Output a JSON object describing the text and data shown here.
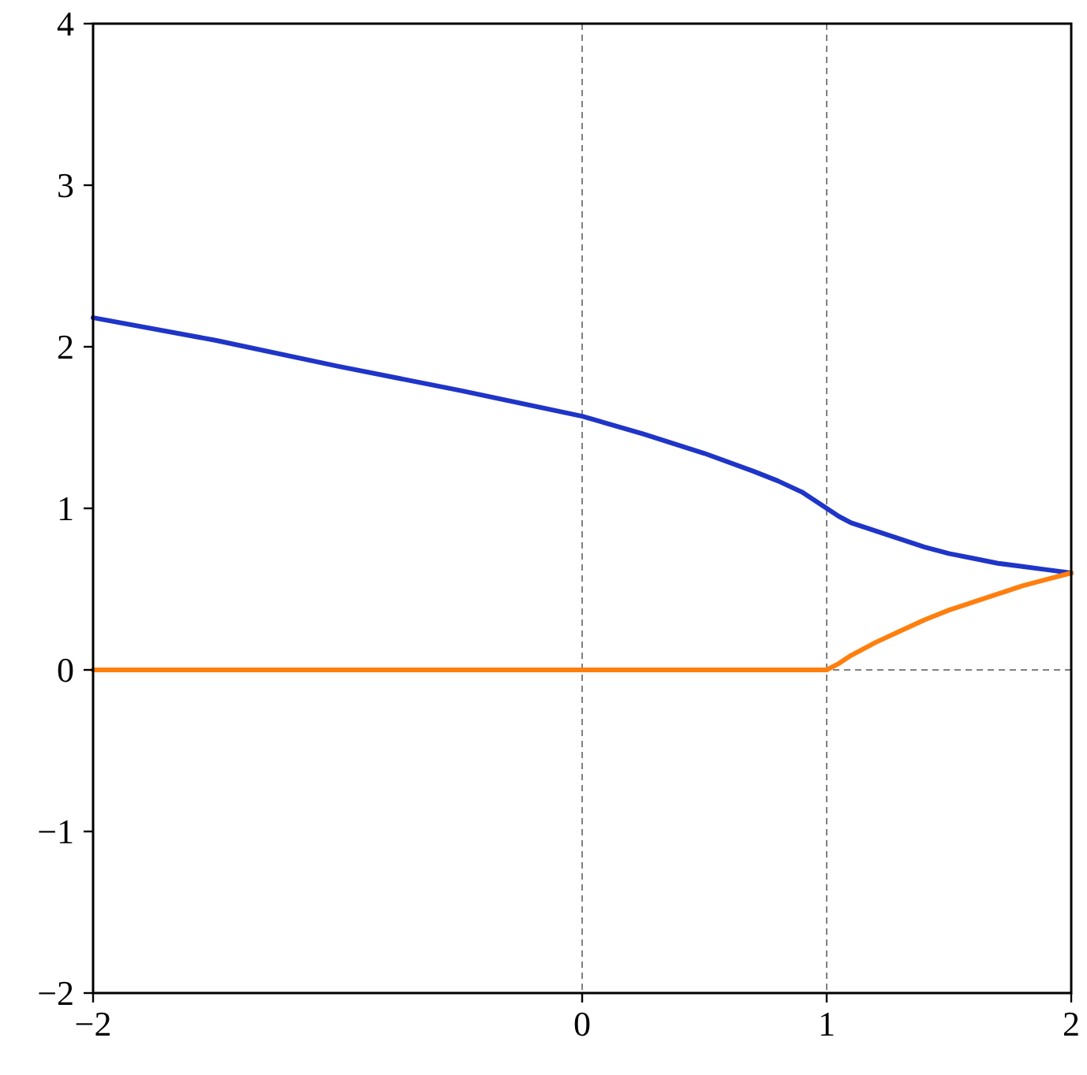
{
  "chart_data": {
    "type": "line",
    "xlim": [
      -2,
      2
    ],
    "ylim": [
      -2,
      4
    ],
    "xticks": [
      {
        "value": -2,
        "label": "−2"
      },
      0,
      1,
      2
    ],
    "yticks": [
      {
        "value": -2,
        "label": "−2"
      },
      {
        "value": -1,
        "label": "−1"
      },
      0,
      1,
      2,
      3,
      4
    ],
    "series": [
      {
        "color": "#1f35c8",
        "x": [
          -2,
          -1.5,
          -1,
          -0.5,
          0,
          0.25,
          0.5,
          0.7,
          0.8,
          0.9,
          0.95,
          1,
          1.05,
          1.1,
          1.2,
          1.3,
          1.4,
          1.5,
          1.6,
          1.7,
          1.8,
          1.9,
          2
        ],
        "values": [
          2.18,
          2.04,
          1.88,
          1.73,
          1.57,
          1.46,
          1.34,
          1.23,
          1.17,
          1.1,
          1.05,
          1.0,
          0.95,
          0.91,
          0.86,
          0.81,
          0.76,
          0.72,
          0.69,
          0.66,
          0.64,
          0.62,
          0.6
        ]
      },
      {
        "color": "#ff7f0e",
        "x": [
          -2,
          1,
          1.05,
          1.1,
          1.2,
          1.3,
          1.4,
          1.5,
          1.6,
          1.7,
          1.8,
          1.9,
          2
        ],
        "values": [
          0,
          0,
          0.04,
          0.09,
          0.17,
          0.24,
          0.31,
          0.37,
          0.42,
          0.47,
          0.52,
          0.56,
          0.6
        ]
      }
    ],
    "ref_lines": [
      {
        "axis": "x",
        "value": 0,
        "color": "#808080",
        "line_style": "dashed"
      },
      {
        "axis": "x",
        "value": 1,
        "color": "#808080",
        "line_style": "dashed"
      },
      {
        "axis": "y",
        "value": 0,
        "color": "#808080",
        "line_style": "dashed"
      }
    ],
    "marker": "none",
    "line_style": "solid"
  }
}
